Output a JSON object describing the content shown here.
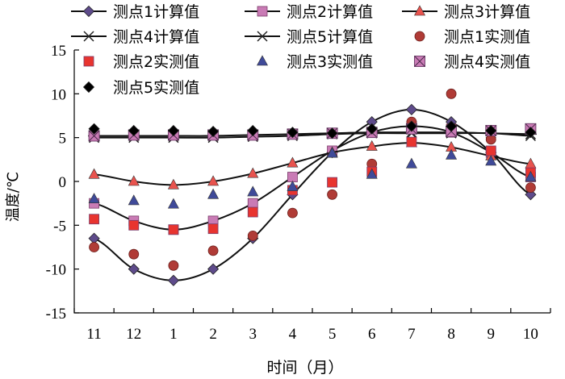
{
  "chart_data": {
    "type": "line",
    "title": "",
    "xlabel": "时间（月）",
    "ylabel": "温度/℃",
    "categories": [
      "11",
      "12",
      "1",
      "2",
      "3",
      "4",
      "5",
      "6",
      "7",
      "8",
      "9",
      "10"
    ],
    "ylim": [
      -15,
      15
    ],
    "yticks": [
      "-15",
      "-10",
      "-5",
      "0",
      "5",
      "10",
      "15"
    ],
    "grid": false,
    "legend_position": "top",
    "series": [
      {
        "name": "测点1计算值",
        "kind": "calculated",
        "marker": "diamond",
        "color": "#5e4b8b",
        "values": [
          -6.5,
          -10.0,
          -11.3,
          -10.0,
          -6.5,
          -1.5,
          3.3,
          6.8,
          8.2,
          6.8,
          3.3,
          -1.5
        ]
      },
      {
        "name": "测点2计算值",
        "kind": "calculated",
        "marker": "square",
        "color": "#c97bb5",
        "values": [
          -2.5,
          -4.5,
          -5.5,
          -4.5,
          -2.5,
          0.5,
          3.5,
          5.6,
          6.3,
          5.6,
          3.3,
          0.5
        ]
      },
      {
        "name": "测点3计算值",
        "kind": "calculated",
        "marker": "triangle",
        "color": "#e8534e",
        "values": [
          0.8,
          0.0,
          -0.4,
          0.0,
          0.9,
          2.1,
          3.3,
          4.0,
          4.4,
          3.9,
          2.9,
          2.0
        ]
      },
      {
        "name": "测点4计算值",
        "kind": "calculated",
        "marker": "x",
        "color": "#222222",
        "values": [
          5.0,
          5.0,
          5.0,
          5.0,
          5.1,
          5.2,
          5.4,
          5.5,
          5.5,
          5.5,
          5.5,
          5.2
        ]
      },
      {
        "name": "测点5计算值",
        "kind": "calculated",
        "marker": "star",
        "color": "#222222",
        "values": [
          5.2,
          5.2,
          5.2,
          5.2,
          5.3,
          5.4,
          5.5,
          5.6,
          5.6,
          5.6,
          5.5,
          5.4
        ]
      },
      {
        "name": "测点1实测值",
        "kind": "measured",
        "marker": "circle",
        "color": "#b03b36",
        "values": [
          -7.5,
          -8.3,
          -9.6,
          -7.9,
          -6.2,
          -3.6,
          -1.5,
          2.0,
          6.8,
          10.0,
          4.8,
          -0.7
        ]
      },
      {
        "name": "测点2实测值",
        "kind": "measured",
        "marker": "square",
        "color": "#e8342f",
        "values": [
          -4.3,
          -5.0,
          -5.5,
          -5.4,
          -3.5,
          -1.0,
          -0.1,
          1.1,
          4.5,
          6.0,
          3.5,
          1.0
        ]
      },
      {
        "name": "测点3实测值",
        "kind": "measured",
        "marker": "triangle",
        "color": "#3f4a99",
        "values": [
          -2.0,
          -2.2,
          -2.6,
          -1.5,
          -1.2,
          -0.6,
          3.2,
          0.8,
          2.0,
          3.0,
          2.3,
          0.5
        ]
      },
      {
        "name": "测点4实测值",
        "kind": "measured",
        "marker": "boxx",
        "color": "#c97bb5",
        "values": [
          5.2,
          5.3,
          5.3,
          5.3,
          5.3,
          5.4,
          5.5,
          5.6,
          6.0,
          5.7,
          5.8,
          6.0
        ]
      },
      {
        "name": "测点5实测值",
        "kind": "measured",
        "marker": "diamond",
        "color": "#000000",
        "values": [
          6.0,
          5.8,
          5.8,
          5.7,
          5.8,
          5.6,
          5.5,
          6.0,
          6.3,
          6.3,
          5.8,
          5.6
        ]
      }
    ]
  }
}
